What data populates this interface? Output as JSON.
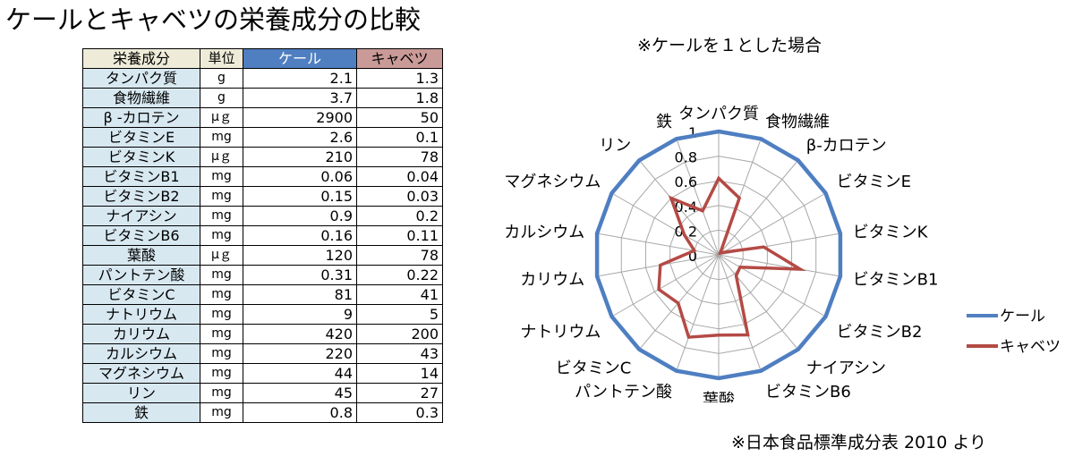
{
  "title": "ケールとキャベツの栄養成分の比較",
  "table": {
    "headers": [
      "栄養成分",
      "単位",
      "ケール",
      "キャベツ"
    ],
    "header_colors": {
      "kale": "#4f7fc1",
      "cabbage": "#c99a97",
      "name_col": "#eeecd9",
      "name_cells": "#d8e8f1"
    },
    "rows": [
      {
        "name": "タンパク質",
        "unit": "g",
        "kale": "2.1",
        "cabbage": "1.3"
      },
      {
        "name": "食物繊維",
        "unit": "g",
        "kale": "3.7",
        "cabbage": "1.8"
      },
      {
        "name": "β -カロテン",
        "unit": "μｇ",
        "kale": "2900",
        "cabbage": "50"
      },
      {
        "name": "ビタミンE",
        "unit": "mg",
        "kale": "2.6",
        "cabbage": "0.1"
      },
      {
        "name": "ビタミンK",
        "unit": "μｇ",
        "kale": "210",
        "cabbage": "78"
      },
      {
        "name": "ビタミンB1",
        "unit": "mg",
        "kale": "0.06",
        "cabbage": "0.04"
      },
      {
        "name": "ビタミンB2",
        "unit": "mg",
        "kale": "0.15",
        "cabbage": "0.03"
      },
      {
        "name": "ナイアシン",
        "unit": "mg",
        "kale": "0.9",
        "cabbage": "0.2"
      },
      {
        "name": "ビタミンB6",
        "unit": "mg",
        "kale": "0.16",
        "cabbage": "0.11"
      },
      {
        "name": "葉酸",
        "unit": "μｇ",
        "kale": "120",
        "cabbage": "78"
      },
      {
        "name": "パントテン酸",
        "unit": "mg",
        "kale": "0.31",
        "cabbage": "0.22"
      },
      {
        "name": "ビタミンC",
        "unit": "mg",
        "kale": "81",
        "cabbage": "41"
      },
      {
        "name": "ナトリウム",
        "unit": "mg",
        "kale": "9",
        "cabbage": "5"
      },
      {
        "name": "カリウム",
        "unit": "mg",
        "kale": "420",
        "cabbage": "200"
      },
      {
        "name": "カルシウム",
        "unit": "mg",
        "kale": "220",
        "cabbage": "43"
      },
      {
        "name": "マグネシウム",
        "unit": "mg",
        "kale": "44",
        "cabbage": "14"
      },
      {
        "name": "リン",
        "unit": "mg",
        "kale": "45",
        "cabbage": "27"
      },
      {
        "name": "鉄",
        "unit": "mg",
        "kale": "0.8",
        "cabbage": "0.3"
      }
    ]
  },
  "chart_data": {
    "type": "radar",
    "title": "※ケールを１とした場合",
    "categories": [
      "タンパク質",
      "食物繊維",
      "β-カロテン",
      "ビタミンE",
      "ビタミンK",
      "ビタミンB1",
      "ビタミンB2",
      "ナイアシン",
      "ビタミンB6",
      "葉酸",
      "パントテン酸",
      "ビタミンC",
      "ナトリウム",
      "カリウム",
      "カルシウム",
      "マグネシウム",
      "リン",
      "鉄"
    ],
    "tick_labels": [
      "0",
      "0.2",
      "0.4",
      "0.6",
      "0.8",
      "1"
    ],
    "rmax": 1,
    "gridlines": true,
    "legend_position": "right",
    "series": [
      {
        "name": "ケール",
        "color": "#4f7fc1",
        "values": [
          1,
          1,
          1,
          1,
          1,
          1,
          1,
          1,
          1,
          1,
          1,
          1,
          1,
          1,
          1,
          1,
          1,
          1
        ]
      },
      {
        "name": "キャベツ",
        "color": "#b44a45",
        "values": [
          0.62,
          0.49,
          0.02,
          0.04,
          0.37,
          0.67,
          0.2,
          0.22,
          0.69,
          0.65,
          0.71,
          0.51,
          0.56,
          0.48,
          0.2,
          0.32,
          0.6,
          0.38
        ]
      }
    ]
  },
  "note": "※日本食品標準成分表 2010 より"
}
